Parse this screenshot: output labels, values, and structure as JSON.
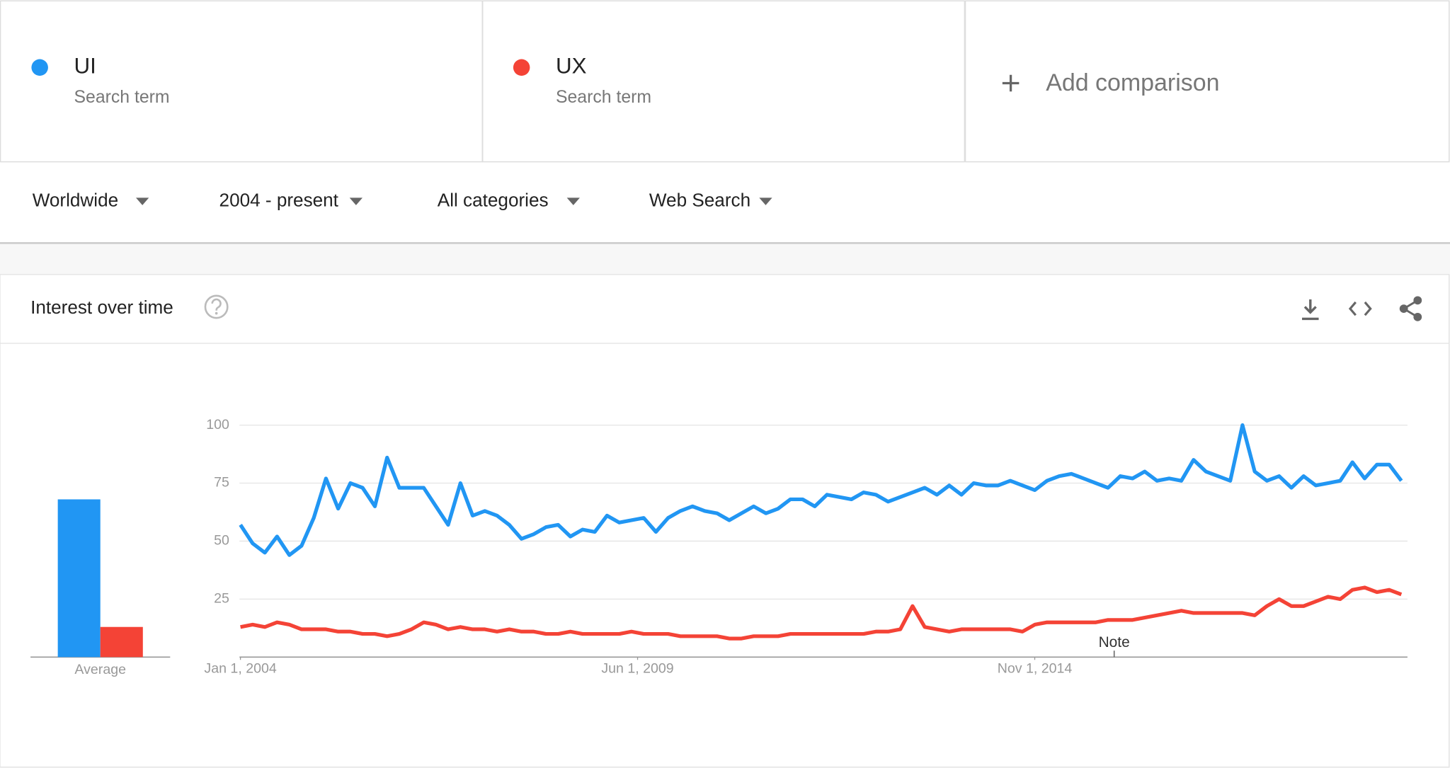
{
  "header": {
    "term_subtitles": [
      "Search term",
      "Search term"
    ],
    "add_comparison": "Add comparison"
  },
  "filters": [
    "Worldwide",
    "2004 - present",
    "All categories",
    "Web Search"
  ],
  "panel_title": "Interest over time",
  "chart_data": [
    {
      "type": "bar",
      "categories": [
        "Average"
      ],
      "ylim": [
        0,
        100
      ],
      "series": [
        {
          "color": "#2196f3",
          "values": [
            68
          ]
        },
        {
          "color": "#f44336",
          "values": [
            13
          ]
        }
      ]
    },
    {
      "type": "line",
      "x": [
        "2004-01",
        "2004-03",
        "2004-05",
        "2004-07",
        "2004-09",
        "2004-11",
        "2005-01",
        "2005-03",
        "2005-05",
        "2005-07",
        "2005-09",
        "2005-11",
        "2006-01",
        "2006-03",
        "2006-05",
        "2006-07",
        "2006-09",
        "2006-11",
        "2007-01",
        "2007-03",
        "2007-05",
        "2007-07",
        "2007-09",
        "2007-11",
        "2008-01",
        "2008-03",
        "2008-05",
        "2008-07",
        "2008-09",
        "2008-11",
        "2009-01",
        "2009-03",
        "2009-05",
        "2009-07",
        "2009-09",
        "2009-11",
        "2010-01",
        "2010-03",
        "2010-05",
        "2010-07",
        "2010-09",
        "2010-11",
        "2011-01",
        "2011-03",
        "2011-05",
        "2011-07",
        "2011-09",
        "2011-11",
        "2012-01",
        "2012-03",
        "2012-05",
        "2012-07",
        "2012-09",
        "2012-11",
        "2013-01",
        "2013-03",
        "2013-05",
        "2013-07",
        "2013-09",
        "2013-11",
        "2014-01",
        "2014-03",
        "2014-05",
        "2014-07",
        "2014-09",
        "2014-11",
        "2015-01",
        "2015-03",
        "2015-05",
        "2015-07",
        "2015-09",
        "2015-11",
        "2016-01",
        "2016-03",
        "2016-05",
        "2016-07",
        "2016-09",
        "2016-11",
        "2017-01",
        "2017-03",
        "2017-05",
        "2017-07",
        "2017-09",
        "2017-11",
        "2018-01",
        "2018-03",
        "2018-05",
        "2018-07",
        "2018-09",
        "2018-11",
        "2019-01",
        "2019-03",
        "2019-05",
        "2019-07",
        "2019-09",
        "2019-11"
      ],
      "series": [
        {
          "name": "UI",
          "color": "#2196f3",
          "values": [
            57,
            49,
            45,
            52,
            44,
            48,
            60,
            77,
            64,
            75,
            73,
            65,
            86,
            73,
            73,
            73,
            65,
            57,
            75,
            61,
            63,
            61,
            57,
            51,
            53,
            56,
            57,
            52,
            55,
            54,
            61,
            58,
            59,
            60,
            54,
            60,
            63,
            65,
            63,
            62,
            59,
            62,
            65,
            62,
            64,
            68,
            68,
            65,
            70,
            69,
            68,
            71,
            70,
            67,
            69,
            71,
            73,
            70,
            74,
            70,
            75,
            74,
            74,
            76,
            74,
            72,
            76,
            78,
            79,
            77,
            75,
            73,
            78,
            77,
            80,
            76,
            77,
            76,
            85,
            80,
            78,
            76,
            100,
            80,
            76,
            78,
            73,
            78,
            74,
            75,
            76,
            84,
            77,
            83,
            83,
            76
          ]
        },
        {
          "name": "UX",
          "color": "#f44336",
          "values": [
            13,
            14,
            13,
            15,
            14,
            12,
            12,
            12,
            11,
            11,
            10,
            10,
            9,
            10,
            12,
            15,
            14,
            12,
            13,
            12,
            12,
            11,
            12,
            11,
            11,
            10,
            10,
            11,
            10,
            10,
            10,
            10,
            11,
            10,
            10,
            10,
            9,
            9,
            9,
            9,
            8,
            8,
            9,
            9,
            9,
            10,
            10,
            10,
            10,
            10,
            10,
            10,
            11,
            11,
            12,
            22,
            13,
            12,
            11,
            12,
            12,
            12,
            12,
            12,
            11,
            14,
            15,
            15,
            15,
            15,
            15,
            16,
            16,
            16,
            17,
            18,
            19,
            20,
            19,
            19,
            19,
            19,
            19,
            18,
            22,
            25,
            22,
            22,
            24,
            26,
            25,
            29,
            30,
            28,
            29,
            27
          ]
        }
      ],
      "xlim": [
        "2004-01",
        "2019-12"
      ],
      "xticks": [
        {
          "value": "2004-01",
          "label": "Jan 1, 2004"
        },
        {
          "value": "2009-06",
          "label": "Jun 1, 2009"
        },
        {
          "value": "2014-11",
          "label": "Nov 1, 2014"
        }
      ],
      "ylim": [
        0,
        100
      ],
      "yticks": [
        25,
        50,
        75,
        100
      ],
      "grid": true,
      "annotations": [
        {
          "x": "2015-12",
          "label": "Note"
        }
      ]
    }
  ]
}
